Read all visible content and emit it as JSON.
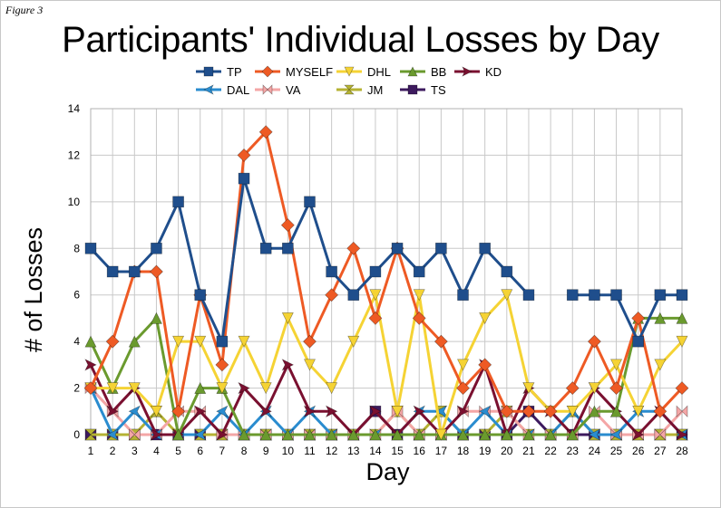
{
  "figure_label": "Figure 3",
  "chart_data": {
    "type": "line",
    "title": "Participants' Individual Losses by Day",
    "xlabel": "Day",
    "ylabel": "# of Losses",
    "x": [
      1,
      2,
      3,
      4,
      5,
      6,
      7,
      8,
      9,
      10,
      11,
      12,
      13,
      14,
      15,
      16,
      17,
      18,
      19,
      20,
      21,
      22,
      23,
      24,
      25,
      26,
      27,
      28
    ],
    "ylim": [
      0,
      14
    ],
    "yticks": [
      0,
      2,
      4,
      6,
      8,
      10,
      12,
      14
    ],
    "grid": true,
    "legend_position": "top",
    "series": [
      {
        "name": "TP",
        "color": "#1f4e8c",
        "marker": "square",
        "values": [
          8,
          7,
          7,
          8,
          10,
          6,
          4,
          11,
          8,
          8,
          10,
          7,
          6,
          7,
          8,
          7,
          8,
          6,
          8,
          7,
          6,
          null,
          6,
          6,
          6,
          4,
          6,
          6
        ]
      },
      {
        "name": "MYSELF",
        "color": "#ee5a24",
        "marker": "diamond",
        "values": [
          2,
          4,
          7,
          7,
          1,
          6,
          3,
          12,
          13,
          9,
          4,
          6,
          8,
          5,
          8,
          5,
          4,
          2,
          3,
          1,
          1,
          1,
          2,
          4,
          2,
          5,
          1,
          2
        ]
      },
      {
        "name": "DHL",
        "color": "#f5d334",
        "marker": "triangle-down",
        "values": [
          2,
          2,
          2,
          1,
          4,
          4,
          2,
          4,
          2,
          5,
          3,
          2,
          4,
          6,
          1,
          6,
          0,
          3,
          5,
          6,
          2,
          1,
          1,
          2,
          3,
          1,
          3,
          4
        ]
      },
      {
        "name": "BB",
        "color": "#6a9a2e",
        "marker": "triangle-up",
        "values": [
          4,
          2,
          4,
          5,
          0,
          2,
          2,
          0,
          0,
          0,
          0,
          0,
          0,
          0,
          0,
          0,
          0,
          0,
          0,
          0,
          0,
          0,
          0,
          1,
          1,
          5,
          5,
          5
        ]
      },
      {
        "name": "KD",
        "color": "#7a1030",
        "marker": "arrow-right",
        "values": [
          3,
          1,
          2,
          0,
          0,
          1,
          0,
          2,
          1,
          3,
          1,
          1,
          0,
          1,
          0,
          1,
          0,
          1,
          3,
          0,
          2,
          1,
          0,
          2,
          1,
          0,
          1,
          0
        ]
      },
      {
        "name": "DAL",
        "color": "#2a8ccf",
        "marker": "arrow-left",
        "values": [
          2,
          0,
          1,
          0,
          0,
          0,
          1,
          0,
          1,
          0,
          1,
          0,
          0,
          0,
          0,
          1,
          1,
          0,
          1,
          0,
          0,
          0,
          1,
          0,
          0,
          1,
          1,
          0
        ]
      },
      {
        "name": "VA",
        "color": "#f4a6a6",
        "marker": "bowtie",
        "values": [
          2,
          1,
          0,
          0,
          1,
          1,
          0,
          0,
          0,
          0,
          0,
          0,
          0,
          0,
          1,
          0,
          0,
          1,
          1,
          1,
          0,
          0,
          0,
          1,
          0,
          0,
          0,
          1
        ]
      },
      {
        "name": "JM",
        "color": "#b5b233",
        "marker": "hourglass",
        "values": [
          0,
          0,
          0,
          1,
          0,
          0,
          0,
          0,
          0,
          0,
          0,
          0,
          0,
          0,
          1,
          0,
          1,
          0,
          0,
          1,
          0,
          0,
          1,
          0,
          0,
          0,
          0,
          0
        ]
      },
      {
        "name": "TS",
        "color": "#3d1a5e",
        "marker": "square",
        "values": [
          0,
          0,
          0,
          0,
          0,
          0,
          0,
          0,
          0,
          0,
          0,
          0,
          0,
          1,
          0,
          0,
          0,
          0,
          0,
          0,
          1,
          0,
          0,
          0,
          0,
          0,
          0,
          0
        ]
      }
    ]
  }
}
